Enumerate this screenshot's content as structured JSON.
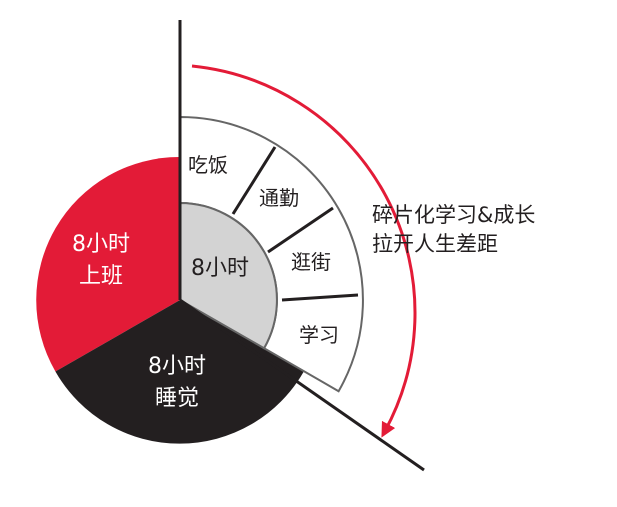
{
  "colors": {
    "work": "#e31b37",
    "sleep": "#231f20",
    "free_center": "#d3d3d3",
    "ring_stroke": "#666666",
    "divider": "#231f20",
    "arrow": "#e31b37",
    "text_light": "#ffffff",
    "text_dark": "#231f20"
  },
  "segments": {
    "work": {
      "hours": "8小时",
      "label": "上班"
    },
    "sleep": {
      "hours": "8小时",
      "label": "睡觉"
    },
    "free": {
      "hours": "8小时"
    }
  },
  "activities": [
    "吃饭",
    "通勤",
    "逛街",
    "学习"
  ],
  "annotation": {
    "line1": "碎片化学习&成长",
    "line2": "拉开人生差距"
  }
}
